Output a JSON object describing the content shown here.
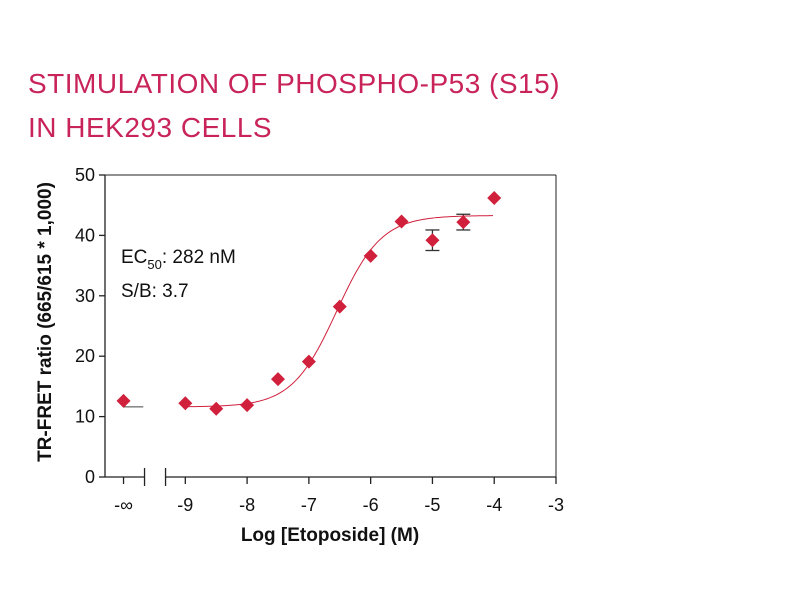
{
  "chart_data": {
    "type": "scatter",
    "title_lines": [
      "STIMULATION OF PHOSPHO-P53 (S15)",
      "IN HEK293 CELLS"
    ],
    "xlabel": "Log [Etoposide] (M)",
    "ylabel": "TR-FRET ratio (665/615 * 1,000)",
    "xlim": [
      -10.3,
      -3
    ],
    "ylim": [
      0,
      50
    ],
    "x_ticks": [
      {
        "value": -10,
        "label": "-∞"
      },
      {
        "value": -9,
        "label": "-9"
      },
      {
        "value": -8,
        "label": "-8"
      },
      {
        "value": -7,
        "label": "-7"
      },
      {
        "value": -6,
        "label": "-6"
      },
      {
        "value": -5,
        "label": "-5"
      },
      {
        "value": -4,
        "label": "-4"
      },
      {
        "value": -3,
        "label": "-3"
      }
    ],
    "y_ticks": [
      0,
      10,
      20,
      30,
      40,
      50
    ],
    "axis_break": true,
    "series": [
      {
        "points": [
          {
            "x": -10,
            "y": 12.6,
            "err": 0
          },
          {
            "x": -9,
            "y": 12.2,
            "err": 0
          },
          {
            "x": -8.5,
            "y": 11.3,
            "err": 0
          },
          {
            "x": -8,
            "y": 11.9,
            "err": 0
          },
          {
            "x": -7.5,
            "y": 16.2,
            "err": 0
          },
          {
            "x": -7,
            "y": 19.1,
            "err": 0
          },
          {
            "x": -6.5,
            "y": 28.2,
            "err": 0
          },
          {
            "x": -6,
            "y": 36.6,
            "err": 0
          },
          {
            "x": -5.5,
            "y": 42.3,
            "err": 0
          },
          {
            "x": -5,
            "y": 39.2,
            "err": 1.7
          },
          {
            "x": -4.5,
            "y": 42.2,
            "err": 1.3
          },
          {
            "x": -4,
            "y": 46.2,
            "err": 0
          }
        ]
      }
    ],
    "fit": {
      "bottom": 11.6,
      "top": 43.3,
      "logEC50": -6.55,
      "hill": 1.2
    },
    "annotations": {
      "ec50_prefix": "EC",
      "ec50_sub": "50",
      "ec50_value": ": 282 nM",
      "sb": "S/B: 3.7"
    },
    "colors": {
      "marker": "#d0203c",
      "fit_line": "#d0203c",
      "axis": "#222222",
      "title": "#c8245a"
    },
    "marker": "diamond",
    "grid": false
  }
}
